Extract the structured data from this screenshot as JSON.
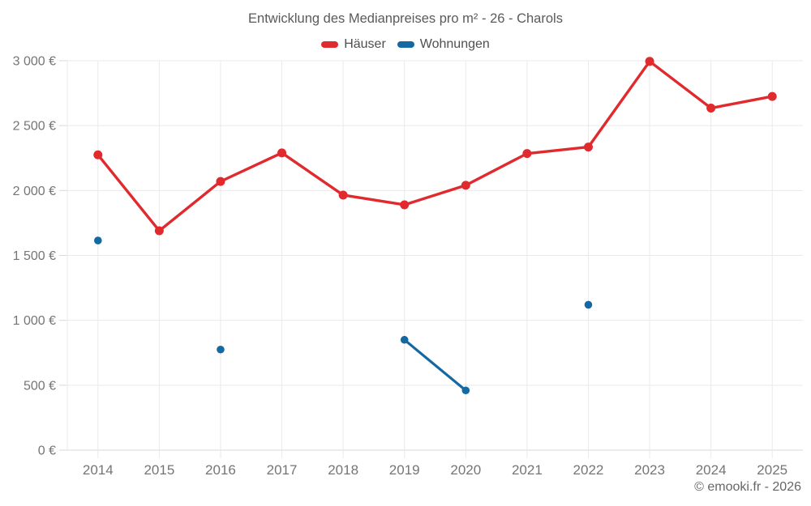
{
  "chart_data": {
    "type": "line",
    "title": "Entwicklung des Medianpreises pro m² - 26 - Charols",
    "categories": [
      "2014",
      "2015",
      "2016",
      "2017",
      "2018",
      "2019",
      "2020",
      "2021",
      "2022",
      "2023",
      "2024",
      "2025"
    ],
    "series": [
      {
        "name": "Häuser",
        "color": "#e02a2e",
        "line_width": 3.4,
        "marker_radius": 5.5,
        "values": [
          2275,
          1690,
          2070,
          2290,
          1965,
          1890,
          2040,
          2285,
          2335,
          2995,
          2635,
          2725
        ]
      },
      {
        "name": "Wohnungen",
        "color": "#1569a2",
        "line_width": 3.2,
        "marker_radius": 4.8,
        "values": [
          1615,
          null,
          775,
          null,
          null,
          850,
          460,
          null,
          1120,
          null,
          null,
          null
        ]
      }
    ],
    "ylim": [
      0,
      3000
    ],
    "yticks": [
      {
        "value": 0,
        "label": "0 €"
      },
      {
        "value": 500,
        "label": "500 €"
      },
      {
        "value": 1000,
        "label": "1 000 €"
      },
      {
        "value": 1500,
        "label": "1 500 €"
      },
      {
        "value": 2000,
        "label": "2 000 €"
      },
      {
        "value": 2500,
        "label": "2 500 €"
      },
      {
        "value": 3000,
        "label": "3 000 €"
      }
    ],
    "grid": true,
    "legend_position": "top",
    "grid_color": "#e9e9e9",
    "axis_line_color": "#d9d9d9",
    "tick_label_color": "#757575"
  },
  "footer": {
    "credit": "© emooki.fr - 2026"
  }
}
